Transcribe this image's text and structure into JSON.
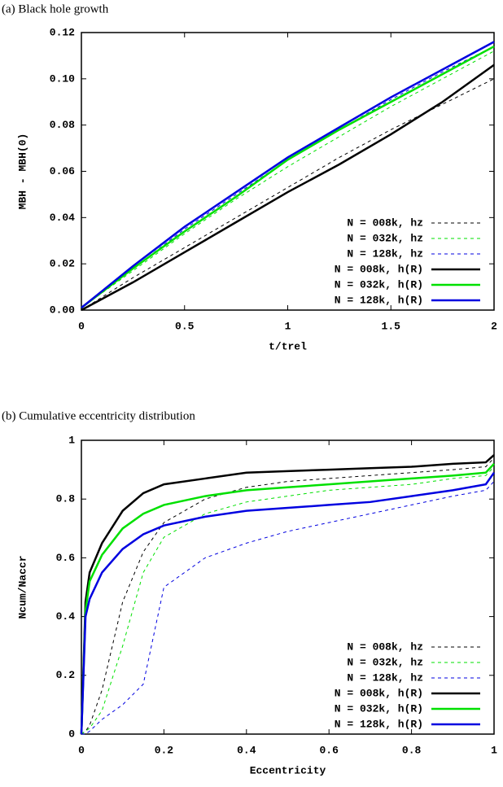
{
  "chart_data": [
    {
      "type": "line",
      "title": "(a) Black hole growth",
      "xlabel": "t/trel",
      "ylabel": "MBH - MBH(0)",
      "x": [
        0,
        0.25,
        0.5,
        0.75,
        1,
        1.25,
        1.5,
        1.75,
        2
      ],
      "xlim": [
        0,
        2
      ],
      "xticks": [
        0,
        0.5,
        1,
        1.5,
        2
      ],
      "ylim": [
        0,
        0.12
      ],
      "yticks": [
        {
          "value": 0,
          "label": "0.00"
        },
        {
          "value": 0.02,
          "label": "0.02"
        },
        {
          "value": 0.04,
          "label": "0.04"
        },
        {
          "value": 0.06,
          "label": "0.06"
        },
        {
          "value": 0.08,
          "label": "0.08"
        },
        {
          "value": 0.1,
          "label": "0.10"
        },
        {
          "value": 0.12,
          "label": "0.12"
        }
      ],
      "legend": "lower right",
      "series": [
        {
          "name": "N = 008k, hz",
          "color": "#000000",
          "dashed": true,
          "values": [
            0,
            0.014,
            0.027,
            0.04,
            0.053,
            0.066,
            0.078,
            0.089,
            0.1
          ]
        },
        {
          "name": "N = 032k, hz",
          "color": "#00e000",
          "dashed": true,
          "values": [
            0.001,
            0.017,
            0.033,
            0.048,
            0.062,
            0.075,
            0.088,
            0.1,
            0.112
          ]
        },
        {
          "name": "N = 128k, hz",
          "color": "#0000e0",
          "dashed": true,
          "values": [
            0.001,
            0.018,
            0.035,
            0.05,
            0.065,
            0.078,
            0.091,
            0.103,
            0.114
          ]
        },
        {
          "name": "N = 008k, h(R)",
          "color": "#000000",
          "dashed": false,
          "values": [
            0,
            0.012,
            0.025,
            0.038,
            0.051,
            0.063,
            0.076,
            0.09,
            0.106
          ]
        },
        {
          "name": "N = 032k, h(R)",
          "color": "#00e000",
          "dashed": false,
          "values": [
            0.001,
            0.018,
            0.034,
            0.049,
            0.065,
            0.078,
            0.09,
            0.102,
            0.114
          ]
        },
        {
          "name": "N = 128k, h(R)",
          "color": "#0000e0",
          "dashed": false,
          "values": [
            0.001,
            0.019,
            0.036,
            0.051,
            0.066,
            0.079,
            0.092,
            0.104,
            0.116
          ]
        }
      ]
    },
    {
      "type": "line",
      "title": "(b) Cumulative eccentricity distribution",
      "xlabel": "Eccentricity",
      "ylabel": "Ncum/Naccr",
      "x": [
        0,
        0.01,
        0.02,
        0.05,
        0.1,
        0.15,
        0.2,
        0.3,
        0.4,
        0.5,
        0.6,
        0.7,
        0.8,
        0.9,
        0.98,
        1
      ],
      "xlim": [
        0,
        1
      ],
      "xticks": [
        0,
        0.2,
        0.4,
        0.6,
        0.8,
        1
      ],
      "ylim": [
        0,
        1
      ],
      "yticks": [
        0,
        0.2,
        0.4,
        0.6,
        0.8,
        1
      ],
      "legend": "lower right",
      "series": [
        {
          "name": "N = 008k, hz",
          "color": "#000000",
          "dashed": true,
          "values": [
            0,
            0.01,
            0.03,
            0.15,
            0.45,
            0.62,
            0.72,
            0.8,
            0.84,
            0.86,
            0.87,
            0.88,
            0.89,
            0.9,
            0.91,
            0.94
          ]
        },
        {
          "name": "N = 032k, hz",
          "color": "#00e000",
          "dashed": true,
          "values": [
            0,
            0.01,
            0.02,
            0.08,
            0.3,
            0.55,
            0.67,
            0.75,
            0.79,
            0.81,
            0.83,
            0.84,
            0.85,
            0.87,
            0.88,
            0.91
          ]
        },
        {
          "name": "N = 128k, hz",
          "color": "#0000e0",
          "dashed": true,
          "values": [
            0,
            0,
            0.01,
            0.05,
            0.1,
            0.17,
            0.5,
            0.6,
            0.65,
            0.69,
            0.72,
            0.75,
            0.78,
            0.81,
            0.83,
            0.86
          ]
        },
        {
          "name": "N = 008k, h(R)",
          "color": "#000000",
          "dashed": false,
          "values": [
            0,
            0.45,
            0.55,
            0.65,
            0.76,
            0.82,
            0.85,
            0.87,
            0.89,
            0.895,
            0.9,
            0.905,
            0.91,
            0.92,
            0.925,
            0.95
          ]
        },
        {
          "name": "N = 032k, h(R)",
          "color": "#00e000",
          "dashed": false,
          "values": [
            0,
            0.42,
            0.52,
            0.61,
            0.7,
            0.75,
            0.78,
            0.81,
            0.83,
            0.84,
            0.85,
            0.86,
            0.87,
            0.88,
            0.89,
            0.92
          ]
        },
        {
          "name": "N = 128k, h(R)",
          "color": "#0000e0",
          "dashed": false,
          "values": [
            0,
            0.4,
            0.46,
            0.55,
            0.63,
            0.68,
            0.71,
            0.74,
            0.76,
            0.77,
            0.78,
            0.79,
            0.81,
            0.83,
            0.85,
            0.89
          ]
        }
      ]
    }
  ]
}
